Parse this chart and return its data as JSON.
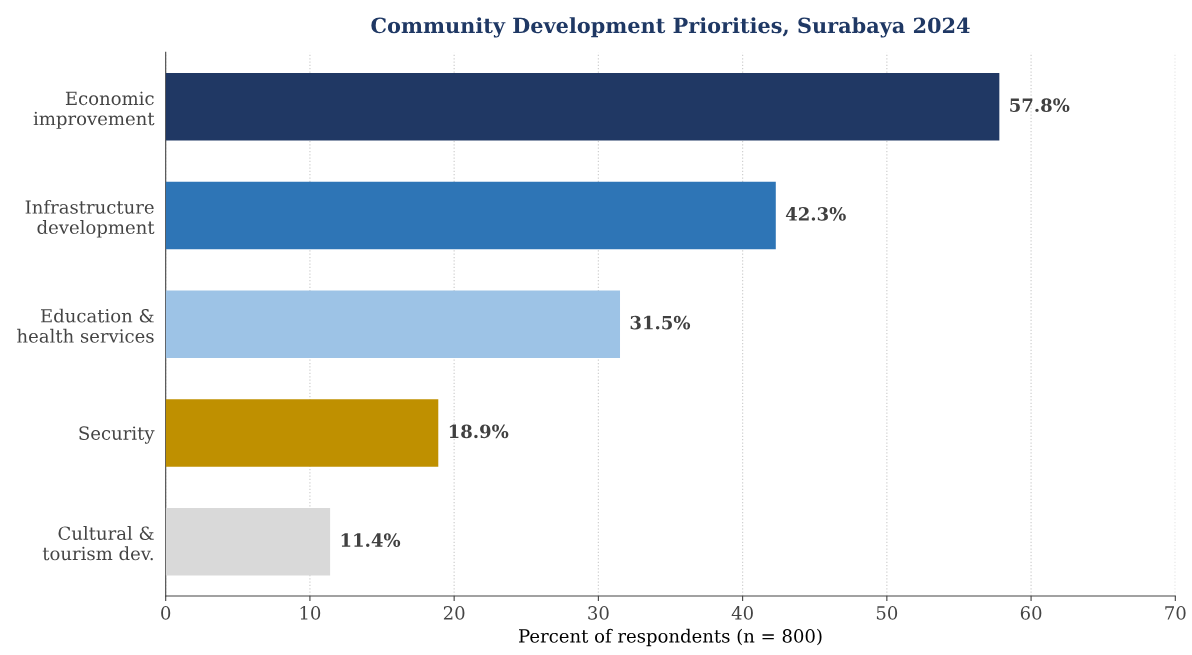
{
  "chart_data": {
    "type": "bar",
    "orientation": "horizontal",
    "title": "Community Development Priorities, Surabaya 2024",
    "xlabel": "Percent of respondents (n = 800)",
    "categories": [
      "Economic\nimprovement",
      "Infrastructure\ndevelopment",
      "Education &\nhealth services",
      "Security",
      "Cultural &\ntourism dev."
    ],
    "values": [
      57.8,
      42.3,
      31.5,
      18.9,
      11.4
    ],
    "value_labels": [
      "57.8%",
      "42.3%",
      "31.5%",
      "18.9%",
      "11.4%"
    ],
    "colors": [
      "#203864",
      "#2e75b6",
      "#9dc3e6",
      "#bf9000",
      "#d9d9d9"
    ],
    "xlim": [
      0,
      70
    ],
    "xticks": [
      0,
      10,
      20,
      30,
      40,
      50,
      60,
      70
    ],
    "grid": "x"
  }
}
